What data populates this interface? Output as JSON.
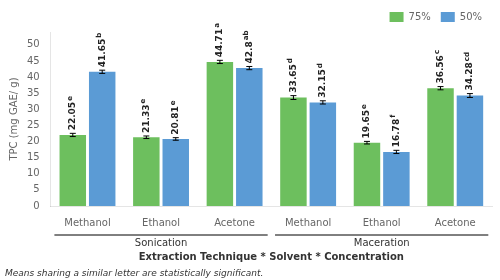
{
  "chart_data": {
    "type": "bar",
    "categories": [
      "Methanol",
      "Ethanol",
      "Acetone",
      "Methanol",
      "Ethanol",
      "Acetone"
    ],
    "category_groups": [
      {
        "label": "Sonication",
        "size": 3
      },
      {
        "label": "Maceration",
        "size": 3
      }
    ],
    "series": [
      {
        "name": "75%",
        "color": "#6dbf5e",
        "values": [
          22.05,
          21.33,
          44.71,
          33.65,
          19.65,
          36.56
        ],
        "errors": [
          0.5,
          0.4,
          0.5,
          0.6,
          0.4,
          0.5
        ],
        "value_labels": [
          "22.05",
          "21.33",
          "44.71",
          "33.65",
          "19.65",
          "36.56"
        ],
        "letters": [
          "e",
          "e",
          "a",
          "d",
          "e",
          "c"
        ]
      },
      {
        "name": "50%",
        "color": "#5b9bd5",
        "values": [
          41.65,
          20.81,
          42.8,
          32.15,
          16.78,
          34.28
        ],
        "errors": [
          0.5,
          0.4,
          0.5,
          0.5,
          0.5,
          0.6
        ],
        "value_labels": [
          "41.65",
          "20.81",
          "42.8",
          "32.15",
          "16.78",
          "34.28"
        ],
        "letters": [
          "b",
          "e",
          "ab",
          "d",
          "f",
          "cd"
        ]
      }
    ],
    "ylabel": "TPC (mg GAE/ g)",
    "xlabel": "Extraction Technique * Solvent * Concentration",
    "footnote": "Means sharing a similar letter are statistically significant.",
    "ylim": [
      0,
      54
    ],
    "yticks": [
      0,
      5,
      10,
      15,
      20,
      25,
      30,
      35,
      40,
      45,
      50
    ],
    "grid": false,
    "legend": "upper right",
    "data_labels": true
  }
}
